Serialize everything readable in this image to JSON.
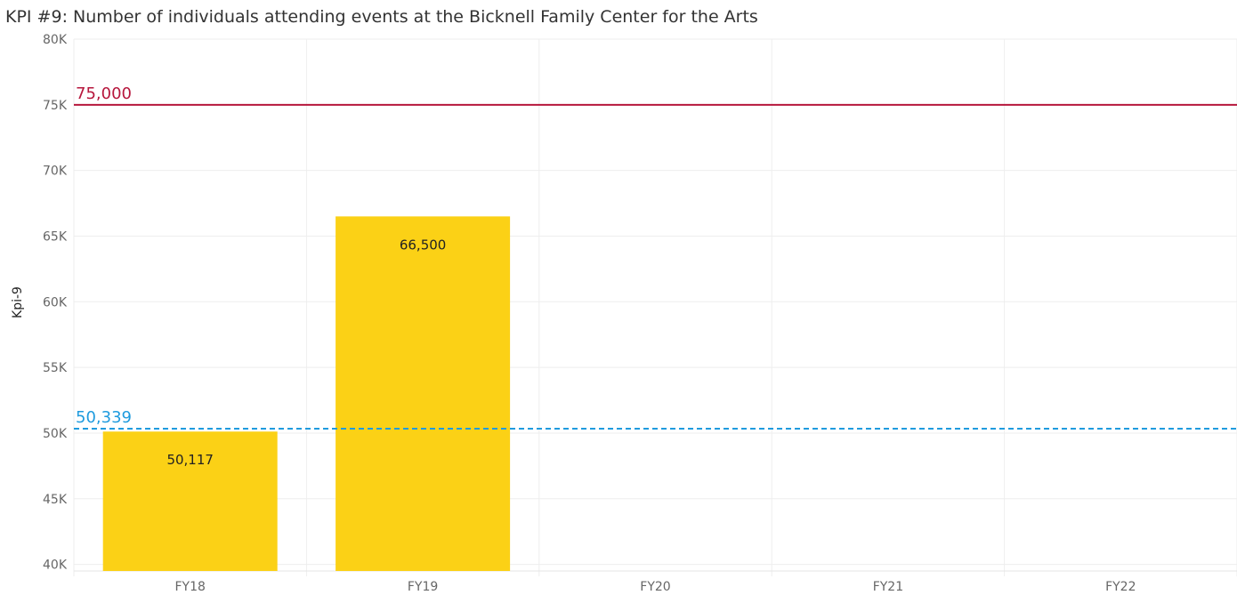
{
  "title": "KPI #9: Number of individuals attending events at the Bicknell Family Center for the Arts",
  "colors": {
    "bar": "#FBD116",
    "target": "#B6163C",
    "average": "#1F9BDE",
    "grid": "#EEEEEE"
  },
  "chart_data": {
    "type": "bar",
    "title": "KPI #9: Number of individuals attending events at the Bicknell Family Center for the Arts",
    "xlabel": "",
    "ylabel": "Kpi-9",
    "categories": [
      "FY18",
      "FY19",
      "FY20",
      "FY21",
      "FY22"
    ],
    "values": [
      50117,
      66500,
      null,
      null,
      null
    ],
    "value_labels": [
      "50,117",
      "66,500",
      "",
      "",
      ""
    ],
    "ylim": [
      39500,
      80000
    ],
    "yticks": [
      40000,
      45000,
      50000,
      55000,
      60000,
      65000,
      70000,
      75000,
      80000
    ],
    "ytick_labels": [
      "40K",
      "45K",
      "50K",
      "55K",
      "60K",
      "65K",
      "70K",
      "75K",
      "80K"
    ],
    "grid": true,
    "reference_lines": [
      {
        "value": 75000,
        "label": "75,000",
        "style": "solid",
        "color": "#B6163C"
      },
      {
        "value": 50339,
        "label": "50,339",
        "style": "dashed",
        "color": "#1F9BDE"
      }
    ]
  }
}
